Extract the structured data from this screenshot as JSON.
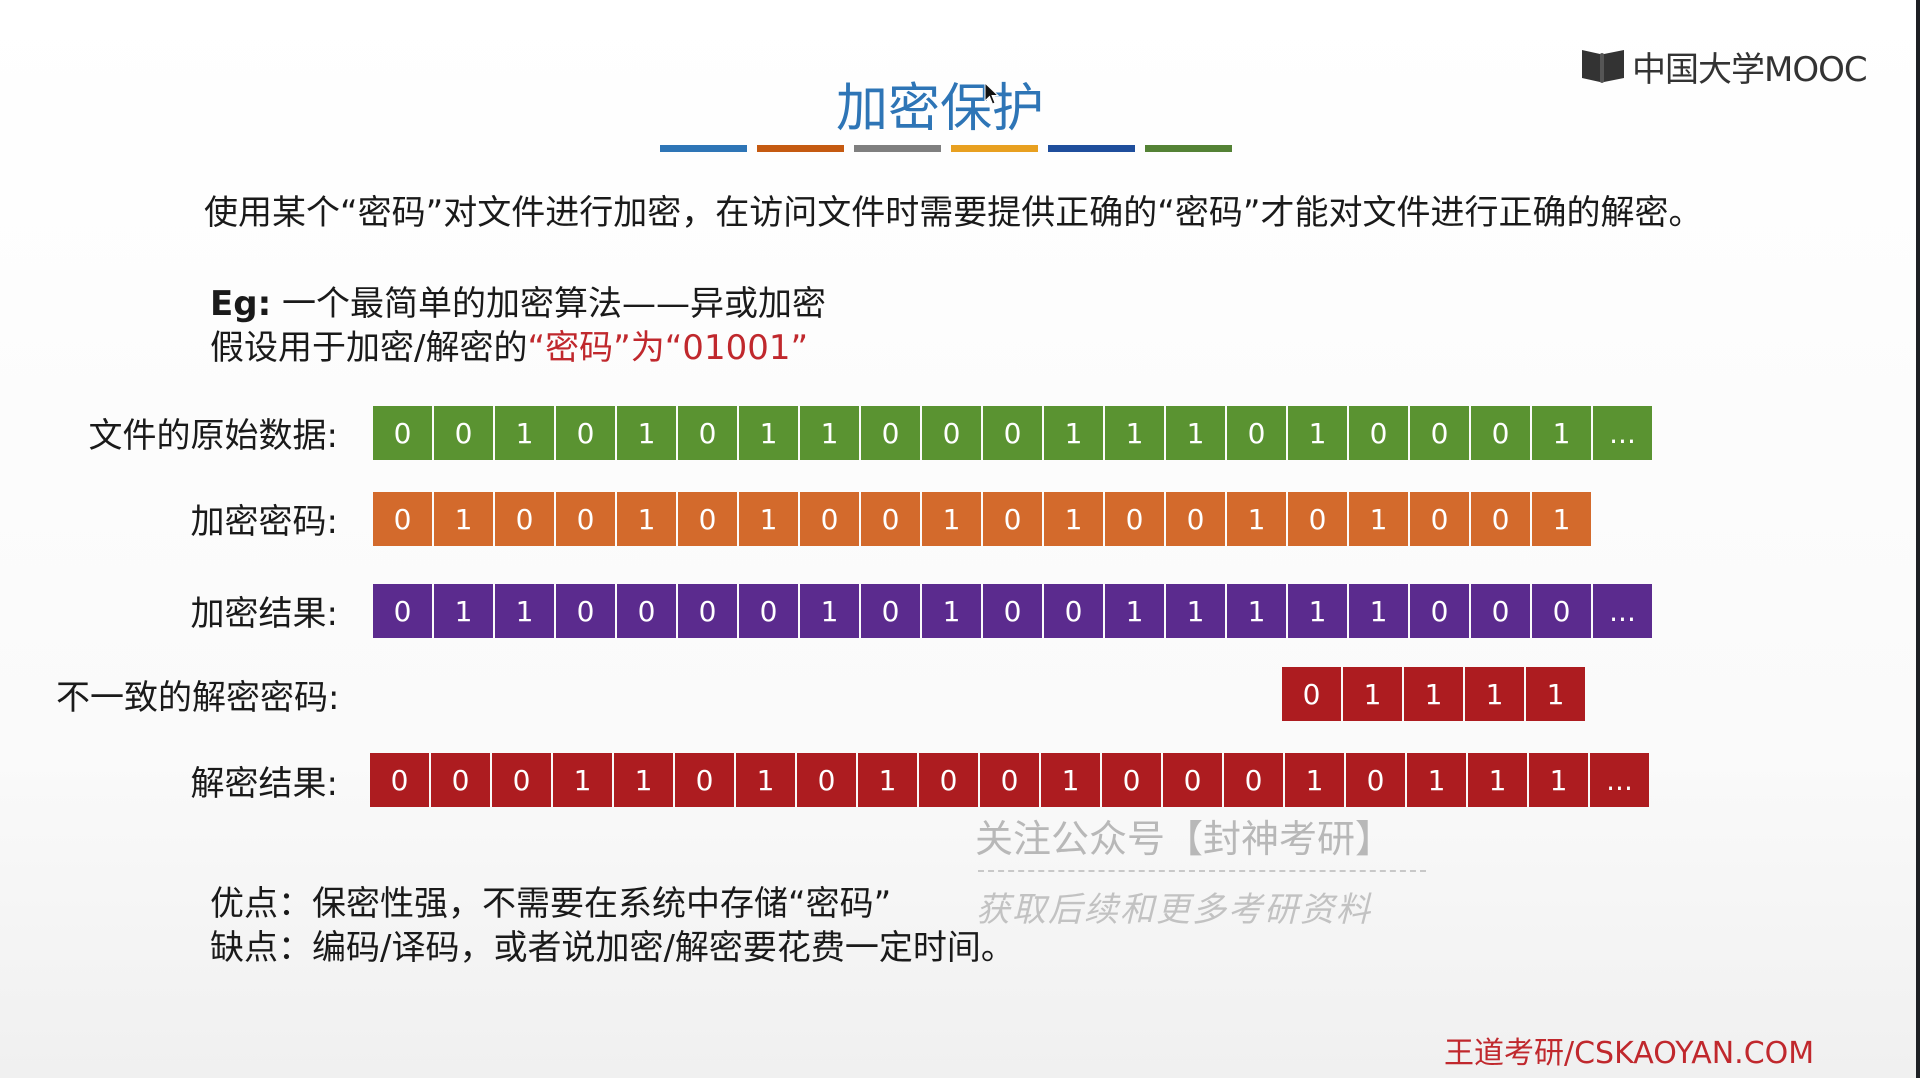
{
  "logo": {
    "text": "中国大学MOOC",
    "icon": "book-icon"
  },
  "title": "加密保护",
  "title_bar_colors": [
    "#2e75b6",
    "#c55a11",
    "#7f7f7f",
    "#e8a020",
    "#1f4e9c",
    "#548235"
  ],
  "intro": "使用某个“密码”对文件进行加密，在访问文件时需要提供正确的“密码”才能对文件进行正确的解密。",
  "example": {
    "eg_prefix": "Eg:",
    "eg_text": "一个最简单的加密算法——异或加密",
    "pwd_prefix": "假设用于加密/解密的",
    "pwd_red": "“密码”为“01001”"
  },
  "rows": [
    {
      "label": "文件的原始数据:",
      "color": "#5a9331",
      "bits": [
        "0",
        "0",
        "1",
        "0",
        "1",
        "0",
        "1",
        "1",
        "0",
        "0",
        "0",
        "1",
        "1",
        "1",
        "0",
        "1",
        "0",
        "0",
        "0",
        "1",
        "..."
      ]
    },
    {
      "label": "加密密码:",
      "color": "#d36a2c",
      "bits": [
        "0",
        "1",
        "0",
        "0",
        "1",
        "0",
        "1",
        "0",
        "0",
        "1",
        "0",
        "1",
        "0",
        "0",
        "1",
        "0",
        "1",
        "0",
        "0",
        "1"
      ]
    },
    {
      "label": "加密结果:",
      "color": "#5b2b8e",
      "bits": [
        "0",
        "1",
        "1",
        "0",
        "0",
        "0",
        "0",
        "1",
        "0",
        "1",
        "0",
        "0",
        "1",
        "1",
        "1",
        "1",
        "1",
        "0",
        "0",
        "0",
        "..."
      ]
    },
    {
      "label": "不一致的解密密码:",
      "color": "#ad1c20",
      "bits": [
        "0",
        "1",
        "1",
        "1",
        "1"
      ]
    },
    {
      "label": "解密结果:",
      "color": "#ad1c20",
      "bits": [
        "0",
        "0",
        "0",
        "1",
        "1",
        "0",
        "1",
        "0",
        "1",
        "0",
        "0",
        "1",
        "0",
        "0",
        "0",
        "1",
        "0",
        "1",
        "1",
        "1",
        "..."
      ]
    }
  ],
  "watermark": {
    "follow": "关注公众号【封神考研】",
    "get": "获取后续和更多考研资料"
  },
  "pros": "优点：保密性强，不需要在系统中存储“密码”",
  "cons": "缺点：编码/译码，或者说加密/解密要花费一定时间。",
  "footer": "王道考研/CSKAOYAN.COM"
}
